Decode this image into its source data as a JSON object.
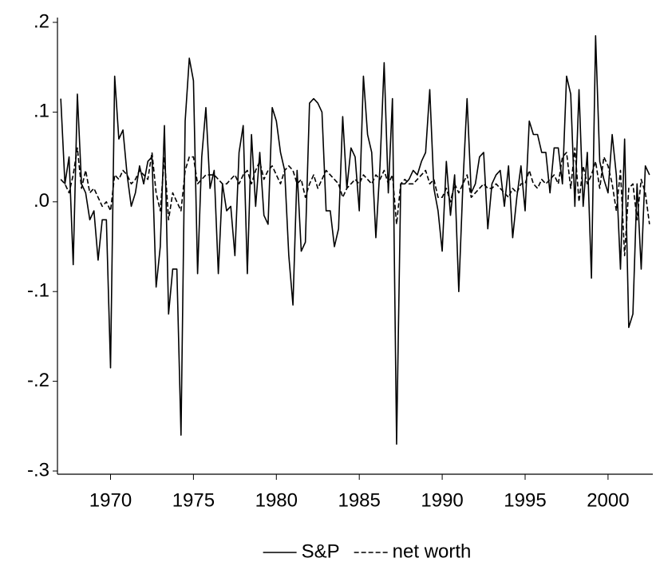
{
  "chart_data": {
    "type": "line",
    "x": [
      1967,
      1967.25,
      1967.5,
      1967.75,
      1968,
      1968.25,
      1968.5,
      1968.75,
      1969,
      1969.25,
      1969.5,
      1969.75,
      1970,
      1970.25,
      1970.5,
      1970.75,
      1971,
      1971.25,
      1971.5,
      1971.75,
      1972,
      1972.25,
      1972.5,
      1972.75,
      1973,
      1973.25,
      1973.5,
      1973.75,
      1974,
      1974.25,
      1974.5,
      1974.75,
      1975,
      1975.25,
      1975.5,
      1975.75,
      1976,
      1976.25,
      1976.5,
      1976.75,
      1977,
      1977.25,
      1977.5,
      1977.75,
      1978,
      1978.25,
      1978.5,
      1978.75,
      1979,
      1979.25,
      1979.5,
      1979.75,
      1980,
      1980.25,
      1980.5,
      1980.75,
      1981,
      1981.25,
      1981.5,
      1981.75,
      1982,
      1982.25,
      1982.5,
      1982.75,
      1983,
      1983.25,
      1983.5,
      1983.75,
      1984,
      1984.25,
      1984.5,
      1984.75,
      1985,
      1985.25,
      1985.5,
      1985.75,
      1986,
      1986.25,
      1986.5,
      1986.75,
      1987,
      1987.25,
      1987.5,
      1987.75,
      1988,
      1988.25,
      1988.5,
      1988.75,
      1989,
      1989.25,
      1989.5,
      1989.75,
      1990,
      1990.25,
      1990.5,
      1990.75,
      1991,
      1991.25,
      1991.5,
      1991.75,
      1992,
      1992.25,
      1992.5,
      1992.75,
      1993,
      1993.25,
      1993.5,
      1993.75,
      1994,
      1994.25,
      1994.5,
      1994.75,
      1995,
      1995.25,
      1995.5,
      1995.75,
      1996,
      1996.25,
      1996.5,
      1996.75,
      1997,
      1997.25,
      1997.5,
      1997.75,
      1998,
      1998.25,
      1998.5,
      1998.75,
      1999,
      1999.25,
      1999.5,
      1999.75,
      2000,
      2000.25,
      2000.5,
      2000.75,
      2001,
      2001.25,
      2001.5,
      2001.75,
      2002,
      2002.25,
      2002.5
    ],
    "series": [
      {
        "name": "S&P",
        "color": "#000000",
        "linestyle": "solid",
        "values": [
          0.115,
          0.02,
          0.05,
          -0.07,
          0.12,
          0.02,
          0.01,
          -0.02,
          -0.01,
          -0.065,
          -0.02,
          -0.02,
          -0.185,
          0.14,
          0.07,
          0.08,
          0.03,
          -0.005,
          0.01,
          0.04,
          0.02,
          0.045,
          0.05,
          -0.095,
          -0.05,
          0.085,
          -0.125,
          -0.075,
          -0.075,
          -0.26,
          0.09,
          0.16,
          0.135,
          -0.08,
          0.05,
          0.105,
          0.015,
          0.035,
          -0.08,
          0.02,
          -0.01,
          -0.005,
          -0.06,
          0.055,
          0.085,
          -0.08,
          0.075,
          -0.005,
          0.055,
          -0.015,
          -0.025,
          0.105,
          0.09,
          0.055,
          0.035,
          -0.06,
          -0.115,
          0.035,
          -0.055,
          -0.045,
          0.11,
          0.115,
          0.11,
          0.1,
          -0.01,
          -0.01,
          -0.05,
          -0.03,
          0.095,
          0.015,
          0.06,
          0.05,
          -0.01,
          0.14,
          0.075,
          0.055,
          -0.04,
          0.04,
          0.155,
          0.01,
          0.115,
          -0.27,
          0.02,
          0.02,
          0.025,
          0.035,
          0.03,
          0.045,
          0.055,
          0.125,
          0.015,
          -0.01,
          -0.055,
          0.045,
          -0.015,
          0.03,
          -0.1,
          0.02,
          0.115,
          0.01,
          0.02,
          0.05,
          0.055,
          -0.03,
          0.02,
          0.03,
          0.035,
          -0.005,
          0.04,
          -0.04,
          0.005,
          0.04,
          -0.01,
          0.09,
          0.075,
          0.075,
          0.055,
          0.055,
          0.01,
          0.06,
          0.06,
          0.02,
          0.14,
          0.12,
          -0.005,
          0.125,
          -0.005,
          0.055,
          -0.085,
          0.185,
          0.045,
          0.025,
          0.01,
          0.075,
          0.03,
          -0.075,
          0.07,
          -0.14,
          -0.125,
          0.02,
          -0.075,
          0.04,
          0.03
        ]
      },
      {
        "name": "net worth",
        "color": "#000000",
        "linestyle": "dashed",
        "values": [
          0.025,
          0.02,
          0.01,
          0.03,
          0.06,
          0.015,
          0.035,
          0.01,
          0.015,
          0.005,
          -0.005,
          0.0,
          -0.01,
          0.03,
          0.025,
          0.035,
          0.03,
          0.02,
          0.025,
          0.035,
          0.03,
          0.025,
          0.055,
          0.01,
          -0.01,
          0.05,
          -0.02,
          0.01,
          0.0,
          -0.01,
          0.035,
          0.05,
          0.05,
          0.02,
          0.025,
          0.03,
          0.03,
          0.03,
          0.025,
          0.02,
          0.02,
          0.025,
          0.03,
          0.02,
          0.03,
          0.035,
          0.02,
          0.035,
          0.045,
          0.025,
          0.035,
          0.04,
          0.03,
          0.02,
          0.035,
          0.04,
          0.035,
          0.02,
          0.025,
          0.005,
          0.02,
          0.03,
          0.015,
          0.025,
          0.035,
          0.03,
          0.025,
          0.02,
          0.005,
          0.015,
          0.02,
          0.025,
          0.02,
          0.03,
          0.025,
          0.02,
          0.03,
          0.025,
          0.035,
          0.02,
          0.03,
          -0.025,
          0.02,
          0.025,
          0.02,
          0.02,
          0.025,
          0.03,
          0.035,
          0.02,
          0.025,
          0.005,
          0.005,
          0.015,
          0.0,
          0.02,
          0.01,
          0.02,
          0.03,
          0.005,
          0.01,
          0.015,
          0.02,
          0.015,
          0.015,
          0.02,
          0.015,
          0.01,
          0.005,
          0.015,
          0.01,
          0.02,
          0.02,
          0.035,
          0.02,
          0.015,
          0.025,
          0.02,
          0.025,
          0.03,
          0.02,
          0.05,
          0.055,
          0.015,
          0.06,
          0.0,
          0.04,
          0.02,
          0.03,
          0.045,
          0.015,
          0.05,
          0.04,
          0.02,
          -0.01,
          0.035,
          -0.06,
          0.015,
          0.02,
          -0.02,
          0.025,
          0.01,
          -0.025
        ]
      }
    ],
    "xlim": [
      1966.8,
      2002.7
    ],
    "xticks": [
      1970,
      1975,
      1980,
      1985,
      1990,
      1995,
      2000
    ],
    "ylim": [
      -0.3,
      0.2
    ],
    "yticks": [
      {
        "value": -0.3,
        "label": "-.3"
      },
      {
        "value": -0.2,
        "label": "-.2"
      },
      {
        "value": -0.1,
        "label": "-.1"
      },
      {
        "value": 0.0,
        "label": ".0"
      },
      {
        "value": 0.1,
        "label": ".1"
      },
      {
        "value": 0.2,
        "label": ".2"
      }
    ],
    "grid": false,
    "legend": "bottom"
  }
}
